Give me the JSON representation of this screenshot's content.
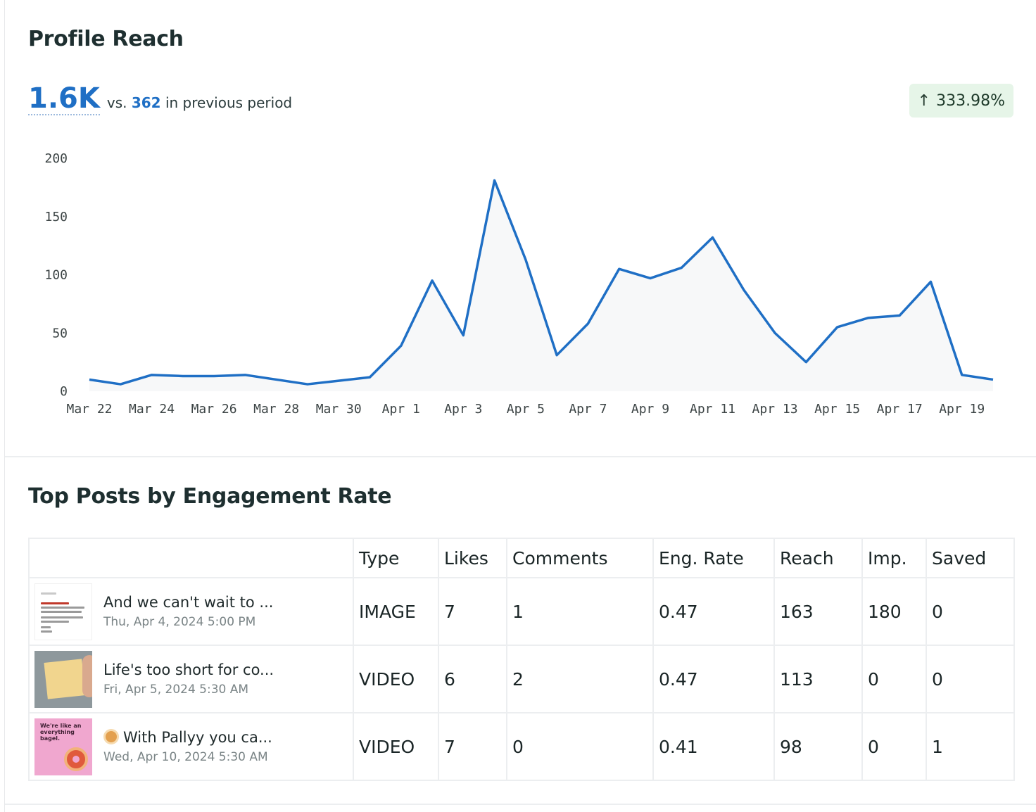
{
  "profile_reach": {
    "title": "Profile Reach",
    "value": "1.6K",
    "vs_label": "vs.",
    "previous_value": "362",
    "previous_label": "in previous period",
    "change": "333.98%",
    "change_direction": "up",
    "accent_color": "#1f6fc5",
    "badge_color": "#e6f5e8"
  },
  "chart_data": {
    "type": "area",
    "title": "",
    "xlabel": "",
    "ylabel": "",
    "ylim": [
      0,
      200
    ],
    "yticks": [
      "0",
      "50",
      "100",
      "150",
      "200"
    ],
    "x_tick_labels": [
      "Mar 22",
      "Mar 24",
      "Mar 26",
      "Mar 28",
      "Mar 30",
      "Apr 1",
      "Apr 3",
      "Apr 5",
      "Apr 7",
      "Apr 9",
      "Apr 11",
      "Apr 13",
      "Apr 15",
      "Apr 17",
      "Apr 19"
    ],
    "x": [
      "Mar 22",
      "Mar 23",
      "Mar 24",
      "Mar 25",
      "Mar 26",
      "Mar 27",
      "Mar 28",
      "Mar 29",
      "Mar 30",
      "Mar 31",
      "Apr 1",
      "Apr 2",
      "Apr 3",
      "Apr 4",
      "Apr 5",
      "Apr 6",
      "Apr 7",
      "Apr 8",
      "Apr 9",
      "Apr 10",
      "Apr 11",
      "Apr 12",
      "Apr 13",
      "Apr 14",
      "Apr 15",
      "Apr 16",
      "Apr 17",
      "Apr 18",
      "Apr 19",
      "Apr 20"
    ],
    "values": [
      10,
      6,
      14,
      13,
      13,
      14,
      10,
      6,
      9,
      12,
      39,
      95,
      48,
      181,
      113,
      31,
      58,
      105,
      97,
      106,
      132,
      87,
      50,
      25,
      55,
      63,
      65,
      94,
      14,
      10
    ],
    "grid": false,
    "line_color": "#1f6fc5",
    "fill_color": "#f7f8f9"
  },
  "top_posts": {
    "title": "Top Posts by Engagement Rate",
    "columns": [
      "",
      "Type",
      "Likes",
      "Comments",
      "Eng. Rate",
      "Reach",
      "Imp.",
      "Saved"
    ],
    "rows": [
      {
        "title": "And we can't wait to ...",
        "date": "Thu, Apr 4, 2024 5:00 PM",
        "type": "IMAGE",
        "likes": "7",
        "comments": "1",
        "eng_rate": "0.47",
        "reach": "163",
        "imp": "180",
        "saved": "0"
      },
      {
        "title": "Life's too short for co...",
        "date": "Fri, Apr 5, 2024 5:30 AM",
        "type": "VIDEO",
        "likes": "6",
        "comments": "2",
        "eng_rate": "0.47",
        "reach": "113",
        "imp": "0",
        "saved": "0"
      },
      {
        "title": "With Pallyy you ca...",
        "date": "Wed, Apr 10, 2024 5:30 AM",
        "type": "VIDEO",
        "likes": "7",
        "comments": "0",
        "eng_rate": "0.41",
        "reach": "98",
        "imp": "0",
        "saved": "1"
      }
    ],
    "thumb_text": "We're like an everything bagel."
  }
}
